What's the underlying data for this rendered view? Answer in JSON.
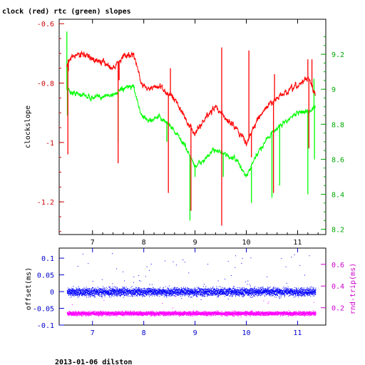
{
  "title": "clock (red) rtc (green) slopes",
  "footer": "2013-01-06 dilston",
  "colors": {
    "clock": "#ff0000",
    "rtc": "#00ff00",
    "offset": "#0000ff",
    "rndtrip": "#ff00ff",
    "axis_red": "#cc0000",
    "axis_green": "#00aa00",
    "axis_blue": "#0000cc",
    "axis_magenta": "#cc00cc"
  },
  "chart_data": [
    {
      "type": "line",
      "title": "clock (red) rtc (green) slopes",
      "ylabel": "clockslope",
      "y2label": "",
      "xlim": [
        6.35,
        11.55
      ],
      "ylim": [
        -1.31,
        -0.585
      ],
      "y2lim": [
        8.17,
        9.4
      ],
      "x_ticks": [
        7,
        8,
        9,
        10,
        11
      ],
      "y_ticks": [
        -0.6,
        -0.8,
        -1,
        -1.2
      ],
      "y_tick_labels": [
        "-0.6",
        "-0.8",
        "-1",
        "-1.2"
      ],
      "y2_ticks": [
        8.2,
        8.4,
        8.6,
        8.8,
        9,
        9.2
      ],
      "y2_tick_labels": [
        "8.2",
        "8.4",
        "8.6",
        "8.8",
        "9",
        "9.2"
      ],
      "grid": false,
      "series": [
        {
          "name": "clock",
          "axis": "left",
          "x": [
            6.5,
            6.6,
            6.8,
            7.0,
            7.2,
            7.4,
            7.6,
            7.8,
            7.95,
            8.1,
            8.3,
            8.5,
            8.65,
            8.8,
            9.0,
            9.2,
            9.4,
            9.6,
            9.8,
            10.0,
            10.2,
            10.4,
            10.6,
            10.8,
            11.0,
            11.2,
            11.35
          ],
          "y": [
            -0.74,
            -0.71,
            -0.7,
            -0.72,
            -0.73,
            -0.75,
            -0.71,
            -0.7,
            -0.8,
            -0.82,
            -0.81,
            -0.84,
            -0.86,
            -0.92,
            -0.97,
            -0.92,
            -0.88,
            -0.92,
            -0.95,
            -1.0,
            -0.93,
            -0.88,
            -0.85,
            -0.83,
            -0.81,
            -0.78,
            -0.84
          ]
        },
        {
          "name": "rtc",
          "axis": "right",
          "x": [
            6.5,
            6.6,
            6.8,
            7.0,
            7.2,
            7.4,
            7.6,
            7.8,
            7.95,
            8.1,
            8.3,
            8.5,
            8.65,
            8.8,
            9.0,
            9.2,
            9.4,
            9.6,
            9.8,
            10.0,
            10.2,
            10.4,
            10.6,
            10.8,
            11.0,
            11.2,
            11.35
          ],
          "y": [
            9.0,
            8.98,
            8.97,
            8.95,
            8.96,
            8.97,
            9.0,
            9.02,
            8.85,
            8.82,
            8.84,
            8.8,
            8.74,
            8.68,
            8.56,
            8.6,
            8.66,
            8.62,
            8.6,
            8.5,
            8.62,
            8.72,
            8.78,
            8.82,
            8.87,
            8.87,
            8.9
          ]
        }
      ]
    },
    {
      "type": "scatter",
      "ylabel": "offset(ms)",
      "y2label": "rnd-trip(ms)",
      "xlim": [
        6.35,
        11.55
      ],
      "ylim": [
        -0.1,
        0.13
      ],
      "y2lim": [
        0.04,
        0.75
      ],
      "x_ticks": [
        7,
        8,
        9,
        10,
        11
      ],
      "y_ticks": [
        0.1,
        0.05,
        0,
        -0.05,
        -0.1
      ],
      "y_tick_labels": [
        "0.1",
        "0.05",
        "0",
        "-0.05",
        "-0.1"
      ],
      "y2_ticks": [
        0.2,
        0.4,
        0.6
      ],
      "y2_tick_labels": [
        "0.2",
        "0.4",
        "0.6"
      ],
      "series": [
        {
          "name": "offset",
          "axis": "left",
          "center": 0.0,
          "spread": 0.012
        },
        {
          "name": "rnd-trip",
          "axis": "right",
          "center": 0.15,
          "spread": 0.018
        }
      ]
    }
  ]
}
